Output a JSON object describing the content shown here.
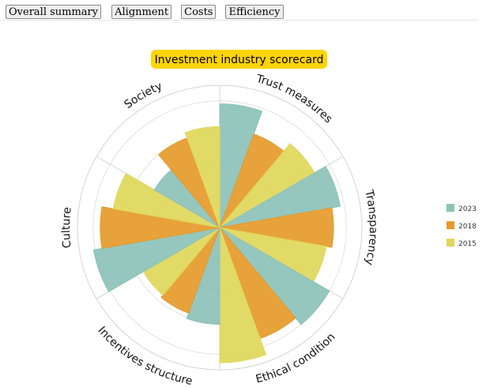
{
  "tabs": [
    "Overall summary",
    "Alignment",
    "Costs",
    "Efficiency"
  ],
  "chart_data": {
    "type": "polar-bar",
    "title": "Investment industry scorecard",
    "title_bg": "#ffd400",
    "categories": [
      "Trust measures",
      "Transparency",
      "Ethical condition",
      "Incentives structure",
      "Culture",
      "Society"
    ],
    "series": [
      {
        "name": "2023",
        "color": "#8cc2b8",
        "values": [
          8.7,
          8.6,
          8.9,
          6.8,
          9.0,
          5.3
        ]
      },
      {
        "name": "2018",
        "color": "#e59a2a",
        "values": [
          7.0,
          8.0,
          8.3,
          6.4,
          8.4,
          6.7
        ]
      },
      {
        "name": "2015",
        "color": "#dfd75a",
        "values": [
          7.7,
          7.6,
          9.5,
          6.2,
          7.6,
          7.1
        ]
      }
    ],
    "rmax": 10,
    "rings": [
      2.2,
      4.4,
      6.7,
      8.9
    ],
    "grid": true,
    "legend_position": "right"
  }
}
